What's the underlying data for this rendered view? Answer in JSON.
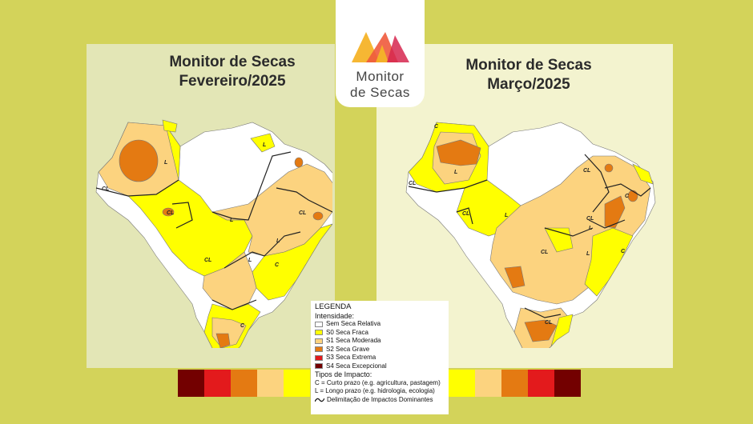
{
  "left_map": {
    "title_line1": "Monitor de Secas",
    "title_line2": "Fevereiro/2025"
  },
  "right_map": {
    "title_line1": "Monitor de Secas",
    "title_line2": "Março/2025"
  },
  "logo": {
    "line1": "Monitor",
    "line2": "de Secas"
  },
  "labels": {
    "short": "C",
    "long": "L",
    "combined": "CL"
  },
  "legend": {
    "title": "LEGENDA",
    "intensity_title": "Intensidade:",
    "categories": [
      {
        "label": "Sem Seca Relativa",
        "color": "#ffffff"
      },
      {
        "label": "S0 Seca Fraca",
        "color": "#ffff00"
      },
      {
        "label": "S1 Seca Moderada",
        "color": "#fcd37f"
      },
      {
        "label": "S2 Seca Grave",
        "color": "#e47a12"
      },
      {
        "label": "S3 Seca Extrema",
        "color": "#e31a1c"
      },
      {
        "label": "S4 Seca Excepcional",
        "color": "#730000"
      }
    ],
    "impact_title": "Tipos de Impacto:",
    "impact_short": "C = Curto prazo (e.g. agricultura, pastagem)",
    "impact_long": "L = Longo prazo (e.g. hidrologia, ecologia)",
    "boundary": "Delimitação de Impactos Dominantes"
  },
  "colorbar_left": [
    "#730000",
    "#e31a1c",
    "#e47a12",
    "#fcd37f",
    "#ffff00"
  ],
  "colorbar_right": [
    "#ffff00",
    "#fcd37f",
    "#e47a12",
    "#e31a1c",
    "#730000"
  ]
}
